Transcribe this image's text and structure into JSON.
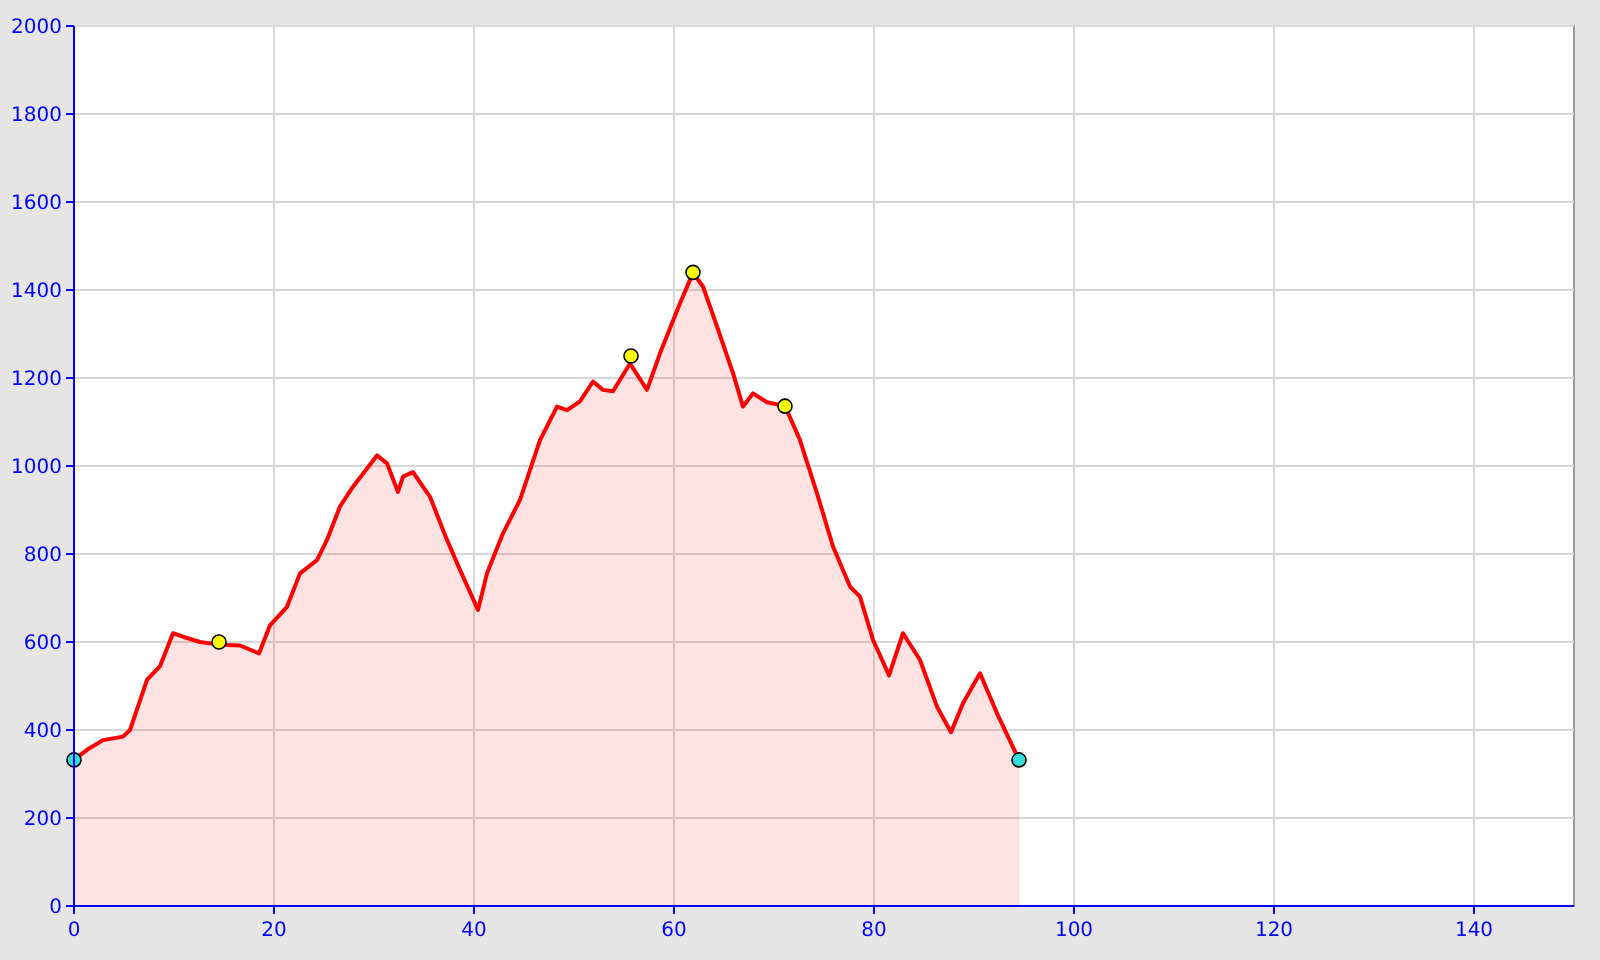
{
  "chart_data": {
    "type": "area",
    "xlim": [
      0,
      150
    ],
    "ylim": [
      0,
      2000
    ],
    "xticks": [
      0,
      20,
      40,
      60,
      80,
      100,
      120,
      140
    ],
    "yticks": [
      0,
      200,
      400,
      600,
      800,
      1000,
      1200,
      1400,
      1600,
      1800,
      2000
    ],
    "grid": true,
    "series": [
      {
        "color": "#ff0000",
        "x": [
          0,
          1.3,
          2.9,
          4.9,
          5.6,
          7.3,
          8.6,
          9.9,
          10.9,
          12.6,
          14.5,
          16.6,
          18.5,
          19.6,
          21.3,
          22.6,
          24.3,
          25.3,
          26.6,
          27.9,
          30.3,
          31.3,
          32.4,
          32.9,
          33.9,
          35.6,
          37.3,
          38.6,
          40.4,
          41.3,
          42.9,
          44.6,
          46.6,
          48.3,
          49.3,
          50.6,
          51.9,
          52.9,
          53.9,
          55.6,
          57.3,
          58.6,
          60.6,
          61.9,
          62.9,
          64.3,
          65.9,
          66.9,
          67.9,
          69.3,
          71.1,
          72.6,
          74.3,
          75.9,
          77.6,
          78.6,
          79.9,
          81.5,
          82.9,
          84.6,
          86.3,
          87.7,
          88.9,
          90.6,
          92.3,
          94.5
        ],
        "values": [
          332,
          355,
          377,
          385,
          400,
          514,
          545,
          620,
          612,
          600,
          594,
          592,
          574,
          638,
          680,
          756,
          786,
          832,
          908,
          953,
          1024,
          1006,
          941,
          976,
          986,
          930,
          832,
          764,
          673,
          756,
          847,
          923,
          1059,
          1135,
          1127,
          1147,
          1192,
          1173,
          1170,
          1233,
          1173,
          1256,
          1370,
          1439,
          1408,
          1317,
          1211,
          1135,
          1165,
          1145,
          1136,
          1059,
          938,
          817,
          726,
          703,
          605,
          524,
          620,
          559,
          453,
          395,
          461,
          529,
          438,
          332
        ]
      },
      {
        "type": "scatter",
        "color": "#ffff00",
        "marker": "circle",
        "x": [
          14.5,
          55.7,
          61.9,
          71.1
        ],
        "values": [
          600,
          1250,
          1440,
          1136
        ]
      },
      {
        "type": "scatter",
        "color": "#33dddd",
        "marker": "circle",
        "x": [
          0,
          94.5
        ],
        "values": [
          332,
          332
        ]
      }
    ]
  }
}
